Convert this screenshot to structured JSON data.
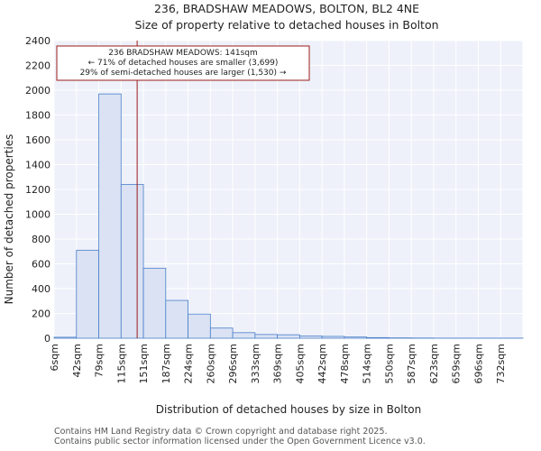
{
  "colors": {
    "bar_fill": "#dae2f4",
    "bar_stroke": "#4a7fc9",
    "marker": "#9b1b1b",
    "plot_bg": "#eef1fa",
    "grid": "#ffffff",
    "text": "#222222",
    "footer_text": "#555555"
  },
  "chart_data": {
    "type": "bar",
    "title": "236, BRADSHAW MEADOWS, BOLTON, BL2 4NE",
    "subtitle": "Size of property relative to detached houses in Bolton",
    "xlabel": "Distribution of detached houses by size in Bolton",
    "ylabel": "Number of detached properties",
    "categories": [
      "6sqm",
      "42sqm",
      "79sqm",
      "115sqm",
      "151sqm",
      "187sqm",
      "224sqm",
      "260sqm",
      "296sqm",
      "333sqm",
      "369sqm",
      "405sqm",
      "442sqm",
      "478sqm",
      "514sqm",
      "550sqm",
      "587sqm",
      "623sqm",
      "659sqm",
      "696sqm",
      "732sqm"
    ],
    "values": [
      8,
      710,
      1970,
      1240,
      565,
      305,
      195,
      82,
      45,
      30,
      28,
      18,
      15,
      10,
      5,
      3,
      2,
      1,
      1,
      1,
      1
    ],
    "ylim": [
      0,
      2400
    ],
    "yticks": [
      0,
      200,
      400,
      600,
      800,
      1000,
      1200,
      1400,
      1600,
      1800,
      2000,
      2200,
      2400
    ],
    "grid": true,
    "marker_value_index": 3.72,
    "annotation": {
      "line1": "236 BRADSHAW MEADOWS: 141sqm",
      "line2": "← 71% of detached houses are smaller (3,699)",
      "line3": "29% of semi-detached houses are larger (1,530) →"
    }
  },
  "footer": {
    "line1": "Contains HM Land Registry data © Crown copyright and database right 2025.",
    "line2": "Contains public sector information licensed under the Open Government Licence v3.0."
  }
}
